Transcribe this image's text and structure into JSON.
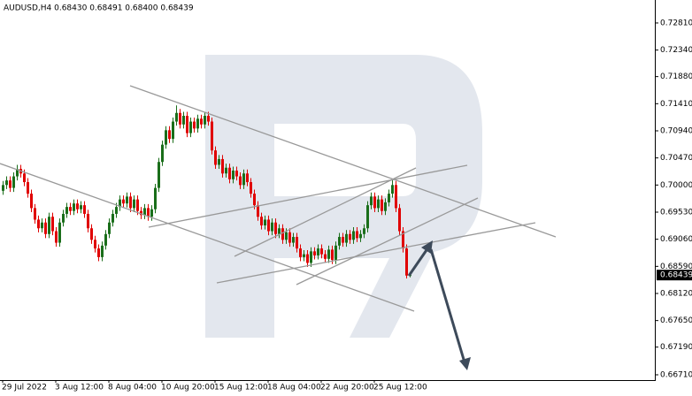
{
  "chart_data": {
    "type": "candlestick",
    "title": "AUDUSD,H4 0.68430 0.68491 0.68400 0.68439",
    "up_color": "#1a6e1a",
    "down_color": "#e00000",
    "categories": [
      "29 Jul 2022",
      null,
      null,
      null,
      null,
      null,
      null,
      null,
      null,
      null,
      null,
      null,
      null,
      null,
      null,
      "3 Aug 12:00",
      null,
      null,
      null,
      null,
      null,
      null,
      null,
      null,
      null,
      null,
      null,
      null,
      null,
      null,
      "8 Aug 04:00",
      null,
      null,
      null,
      null,
      null,
      null,
      null,
      null,
      null,
      null,
      null,
      null,
      null,
      null,
      "10 Aug 20:00",
      null,
      null,
      null,
      null,
      null,
      null,
      null,
      null,
      null,
      null,
      null,
      null,
      null,
      null,
      "15 Aug 12:00",
      null,
      null,
      null,
      null,
      null,
      null,
      null,
      null,
      null,
      null,
      null,
      null,
      null,
      null,
      "18 Aug 04:00",
      null,
      null,
      null,
      null,
      null,
      null,
      null,
      null,
      null,
      null,
      null,
      null,
      null,
      null,
      "22 Aug 20:00",
      null,
      null,
      null,
      null,
      null,
      null,
      null,
      null,
      null,
      null,
      null,
      null,
      null,
      null,
      "25 Aug 12:00",
      null,
      null,
      null,
      null,
      null,
      null,
      null,
      null,
      null,
      null
    ],
    "open": [
      0.699,
      0.7,
      0.7008,
      0.6995,
      0.7015,
      0.7028,
      0.702,
      0.7005,
      0.6985,
      0.696,
      0.694,
      0.6925,
      0.6935,
      0.6915,
      0.6945,
      0.692,
      0.69,
      0.6935,
      0.695,
      0.6962,
      0.6955,
      0.6968,
      0.6958,
      0.6965,
      0.695,
      0.6925,
      0.6905,
      0.689,
      0.6875,
      0.6895,
      0.6915,
      0.6935,
      0.695,
      0.6962,
      0.6975,
      0.6968,
      0.698,
      0.696,
      0.6975,
      0.6955,
      0.6948,
      0.696,
      0.6945,
      0.6958,
      0.6995,
      0.704,
      0.707,
      0.7095,
      0.708,
      0.711,
      0.7125,
      0.7105,
      0.712,
      0.709,
      0.711,
      0.7098,
      0.7115,
      0.7105,
      0.712,
      0.711,
      0.706,
      0.7035,
      0.7045,
      0.702,
      0.703,
      0.701,
      0.7025,
      0.7015,
      0.7,
      0.702,
      0.7005,
      0.6985,
      0.6965,
      0.6945,
      0.693,
      0.694,
      0.692,
      0.6935,
      0.6915,
      0.6925,
      0.6905,
      0.6918,
      0.69,
      0.691,
      0.689,
      0.6875,
      0.688,
      0.6865,
      0.6885,
      0.6878,
      0.689,
      0.688,
      0.6872,
      0.6888,
      0.687,
      0.6895,
      0.691,
      0.69,
      0.6915,
      0.6905,
      0.692,
      0.6908,
      0.6915,
      0.6925,
      0.6965,
      0.698,
      0.696,
      0.6975,
      0.6955,
      0.697,
      0.6985,
      0.7,
      0.696,
      0.692,
      0.689,
      0.6843
    ],
    "high": [
      0.7007,
      0.7015,
      0.7015,
      0.7022,
      0.7035,
      0.7035,
      0.7027,
      0.7012,
      0.6992,
      0.6967,
      0.6947,
      0.6942,
      0.6942,
      0.6952,
      0.6952,
      0.6927,
      0.6942,
      0.6957,
      0.6969,
      0.6969,
      0.6975,
      0.6975,
      0.6972,
      0.6972,
      0.6957,
      0.6932,
      0.6912,
      0.6897,
      0.6902,
      0.6922,
      0.6942,
      0.6957,
      0.6969,
      0.6982,
      0.6982,
      0.6987,
      0.6987,
      0.6982,
      0.6982,
      0.6962,
      0.6967,
      0.6967,
      0.6965,
      0.7002,
      0.7047,
      0.7077,
      0.7102,
      0.7102,
      0.7117,
      0.7138,
      0.7132,
      0.7127,
      0.7127,
      0.7117,
      0.7117,
      0.7122,
      0.7122,
      0.7127,
      0.7127,
      0.7117,
      0.7067,
      0.7052,
      0.7052,
      0.7037,
      0.7037,
      0.7032,
      0.7032,
      0.7022,
      0.7027,
      0.7027,
      0.7012,
      0.6992,
      0.6972,
      0.6952,
      0.6947,
      0.6947,
      0.6942,
      0.6942,
      0.6932,
      0.6932,
      0.6925,
      0.6925,
      0.6917,
      0.6917,
      0.6897,
      0.6887,
      0.6887,
      0.6892,
      0.6892,
      0.6897,
      0.6897,
      0.6887,
      0.6895,
      0.6895,
      0.6902,
      0.6917,
      0.6917,
      0.6922,
      0.6922,
      0.6927,
      0.6927,
      0.6922,
      0.6932,
      0.6972,
      0.6987,
      0.6987,
      0.6982,
      0.6982,
      0.6977,
      0.6992,
      0.701,
      0.7007,
      0.6967,
      0.6927,
      0.6897,
      0.68491
    ],
    "low": [
      0.6983,
      0.6993,
      0.6988,
      0.6988,
      0.7008,
      0.7013,
      0.6998,
      0.6978,
      0.6953,
      0.6933,
      0.6918,
      0.6918,
      0.6908,
      0.6908,
      0.6913,
      0.6893,
      0.6893,
      0.6928,
      0.6943,
      0.6948,
      0.6948,
      0.6951,
      0.6951,
      0.6943,
      0.6918,
      0.6898,
      0.6883,
      0.6868,
      0.6868,
      0.6888,
      0.6908,
      0.6928,
      0.6943,
      0.6955,
      0.6961,
      0.6961,
      0.6953,
      0.6953,
      0.6948,
      0.6941,
      0.6941,
      0.6938,
      0.6938,
      0.6951,
      0.6988,
      0.7033,
      0.7063,
      0.7073,
      0.7073,
      0.7103,
      0.7098,
      0.7098,
      0.7083,
      0.7083,
      0.7091,
      0.7091,
      0.7098,
      0.7098,
      0.7103,
      0.7053,
      0.7028,
      0.7028,
      0.7013,
      0.7013,
      0.7003,
      0.7003,
      0.7008,
      0.6993,
      0.6993,
      0.6998,
      0.6978,
      0.6958,
      0.6938,
      0.6923,
      0.6923,
      0.6913,
      0.6913,
      0.6908,
      0.6908,
      0.6898,
      0.6898,
      0.6893,
      0.6893,
      0.6883,
      0.6868,
      0.6868,
      0.6858,
      0.6858,
      0.6871,
      0.6871,
      0.6873,
      0.6865,
      0.6865,
      0.6863,
      0.6863,
      0.6888,
      0.6893,
      0.6893,
      0.6898,
      0.6898,
      0.6901,
      0.6901,
      0.6908,
      0.6918,
      0.6958,
      0.6953,
      0.6953,
      0.6948,
      0.6948,
      0.6963,
      0.6978,
      0.6953,
      0.6913,
      0.6883,
      0.6838,
      0.684
    ],
    "close": [
      0.7,
      0.7008,
      0.6995,
      0.7015,
      0.7028,
      0.702,
      0.7005,
      0.6985,
      0.696,
      0.694,
      0.6925,
      0.6935,
      0.6915,
      0.6945,
      0.692,
      0.69,
      0.6935,
      0.695,
      0.6962,
      0.6955,
      0.6968,
      0.6958,
      0.6965,
      0.695,
      0.6925,
      0.6905,
      0.689,
      0.6875,
      0.6895,
      0.6915,
      0.6935,
      0.695,
      0.6962,
      0.6975,
      0.6968,
      0.698,
      0.696,
      0.6975,
      0.6955,
      0.6948,
      0.696,
      0.6945,
      0.6958,
      0.6995,
      0.704,
      0.707,
      0.7095,
      0.708,
      0.711,
      0.7125,
      0.7105,
      0.712,
      0.709,
      0.711,
      0.7098,
      0.7115,
      0.7105,
      0.712,
      0.711,
      0.706,
      0.7035,
      0.7045,
      0.702,
      0.703,
      0.701,
      0.7025,
      0.7015,
      0.7,
      0.702,
      0.7005,
      0.6985,
      0.6965,
      0.6945,
      0.693,
      0.694,
      0.692,
      0.6935,
      0.6915,
      0.6925,
      0.6905,
      0.6918,
      0.69,
      0.691,
      0.689,
      0.6875,
      0.688,
      0.6865,
      0.6885,
      0.6878,
      0.689,
      0.688,
      0.6872,
      0.6888,
      0.687,
      0.6895,
      0.691,
      0.69,
      0.6915,
      0.6905,
      0.692,
      0.6908,
      0.6915,
      0.6925,
      0.6965,
      0.698,
      0.696,
      0.6975,
      0.6955,
      0.697,
      0.6985,
      0.7,
      0.696,
      0.692,
      0.689,
      0.6843,
      0.68439
    ],
    "ylim": [
      0.66618,
      0.73208
    ],
    "yticks": [
      {
        "value": 0.7281,
        "label": "0.72810"
      },
      {
        "value": 0.7234,
        "label": "0.72340"
      },
      {
        "value": 0.7188,
        "label": "0.71880"
      },
      {
        "value": 0.7141,
        "label": "0.71410"
      },
      {
        "value": 0.7094,
        "label": "0.70940"
      },
      {
        "value": 0.7047,
        "label": "0.70470"
      },
      {
        "value": 0.7,
        "label": "0.70000"
      },
      {
        "value": 0.6953,
        "label": "0.69530"
      },
      {
        "value": 0.6906,
        "label": "0.69060"
      },
      {
        "value": 0.6859,
        "label": "0.68590"
      },
      {
        "value": 0.6812,
        "label": "0.68120"
      },
      {
        "value": 0.6765,
        "label": "0.67650"
      },
      {
        "value": 0.6719,
        "label": "0.67190"
      },
      {
        "value": 0.6671,
        "label": "0.66710"
      }
    ],
    "last_price": 0.68439
  }
}
